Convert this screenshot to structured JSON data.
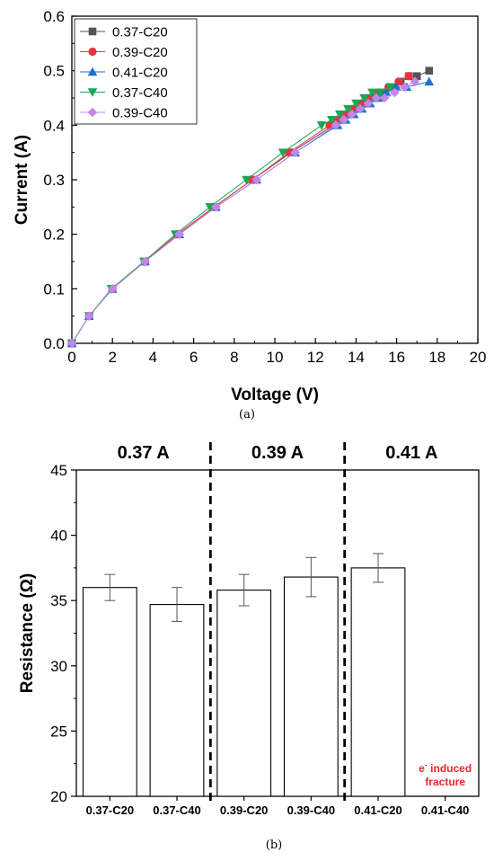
{
  "chart_data": [
    {
      "type": "line",
      "xlabel": "Voltage (V)",
      "ylabel": "Current (A)",
      "xlim": [
        0,
        20
      ],
      "ylim": [
        0.0,
        0.6
      ],
      "xticks": [
        0,
        2,
        4,
        6,
        8,
        10,
        12,
        14,
        16,
        18,
        20
      ],
      "yticks": [
        "0.0",
        "0.1",
        "0.2",
        "0.3",
        "0.4",
        "0.5",
        "0.6"
      ],
      "grid": false,
      "legend_position": "top-left",
      "caption": "(a)",
      "series": [
        {
          "name": "0.37-C20",
          "color": "#555555",
          "marker": "square",
          "x": [
            0,
            0.85,
            2.0,
            3.6,
            5.2,
            7.0,
            8.9,
            10.8,
            12.9,
            13.3,
            13.7,
            14.1,
            14.5,
            14.9,
            15.3,
            15.8,
            16.2,
            16.6,
            17.0,
            17.6
          ],
          "y": [
            0,
            0.05,
            0.1,
            0.15,
            0.2,
            0.25,
            0.3,
            0.35,
            0.4,
            0.41,
            0.42,
            0.43,
            0.44,
            0.45,
            0.46,
            0.47,
            0.48,
            0.49,
            0.49,
            0.5
          ]
        },
        {
          "name": "0.39-C20",
          "color": "#e8333a",
          "marker": "circle",
          "x": [
            0,
            0.85,
            2.0,
            3.6,
            5.2,
            7.0,
            8.9,
            10.7,
            12.7,
            13.1,
            13.5,
            13.9,
            14.3,
            14.7,
            15.1,
            15.6,
            16.1,
            16.6
          ],
          "y": [
            0,
            0.05,
            0.1,
            0.15,
            0.2,
            0.25,
            0.3,
            0.35,
            0.4,
            0.41,
            0.42,
            0.43,
            0.44,
            0.45,
            0.46,
            0.47,
            0.48,
            0.49
          ]
        },
        {
          "name": "0.41-C20",
          "color": "#1f6fd1",
          "marker": "triangle-up",
          "x": [
            0,
            0.85,
            2.0,
            3.6,
            5.3,
            7.1,
            9.1,
            11.0,
            13.1,
            13.5,
            13.9,
            14.3,
            14.7,
            15.1,
            15.5,
            16.0,
            16.5,
            17.6
          ],
          "y": [
            0,
            0.05,
            0.1,
            0.15,
            0.2,
            0.25,
            0.3,
            0.35,
            0.4,
            0.41,
            0.42,
            0.43,
            0.44,
            0.45,
            0.46,
            0.47,
            0.47,
            0.48
          ]
        },
        {
          "name": "0.37-C40",
          "color": "#1aa654",
          "marker": "triangle-down",
          "x": [
            0,
            0.85,
            1.95,
            3.55,
            5.1,
            6.8,
            8.6,
            10.4,
            12.3,
            12.8,
            13.2,
            13.6,
            14.0,
            14.4,
            14.8,
            15.2,
            15.7
          ],
          "y": [
            0,
            0.05,
            0.1,
            0.15,
            0.2,
            0.25,
            0.3,
            0.35,
            0.4,
            0.41,
            0.42,
            0.43,
            0.44,
            0.45,
            0.46,
            0.46,
            0.47
          ]
        },
        {
          "name": "0.39-C40",
          "color": "#c585e8",
          "marker": "diamond",
          "x": [
            0,
            0.85,
            2.0,
            3.6,
            5.3,
            7.1,
            9.1,
            11.0,
            13.0,
            13.4,
            13.8,
            14.2,
            14.6,
            15.0,
            15.4,
            15.9,
            16.4,
            16.9
          ],
          "y": [
            0,
            0.05,
            0.1,
            0.15,
            0.2,
            0.25,
            0.3,
            0.35,
            0.4,
            0.41,
            0.42,
            0.43,
            0.44,
            0.45,
            0.45,
            0.46,
            0.47,
            0.48
          ]
        }
      ]
    },
    {
      "type": "bar",
      "ylabel": "Resistance (Ω)",
      "ylim": [
        20,
        45
      ],
      "yticks": [
        20,
        25,
        30,
        35,
        40,
        45
      ],
      "categories": [
        "0.37-C20",
        "0.37-C40",
        "0.39-C20",
        "0.39-C40",
        "0.41-C20",
        "0.41-C40"
      ],
      "values": [
        36.0,
        34.7,
        35.8,
        36.8,
        37.5,
        null
      ],
      "errors": [
        1.0,
        1.3,
        1.2,
        1.5,
        1.1,
        null
      ],
      "highlight_category_color": "#e8262a",
      "groups": [
        "0.37 A",
        "0.39 A",
        "0.41 A"
      ],
      "annotation": {
        "line1": "e",
        "sup": "-",
        "line1_rest": " induced",
        "line2": "fracture"
      },
      "caption": "(b)"
    }
  ]
}
